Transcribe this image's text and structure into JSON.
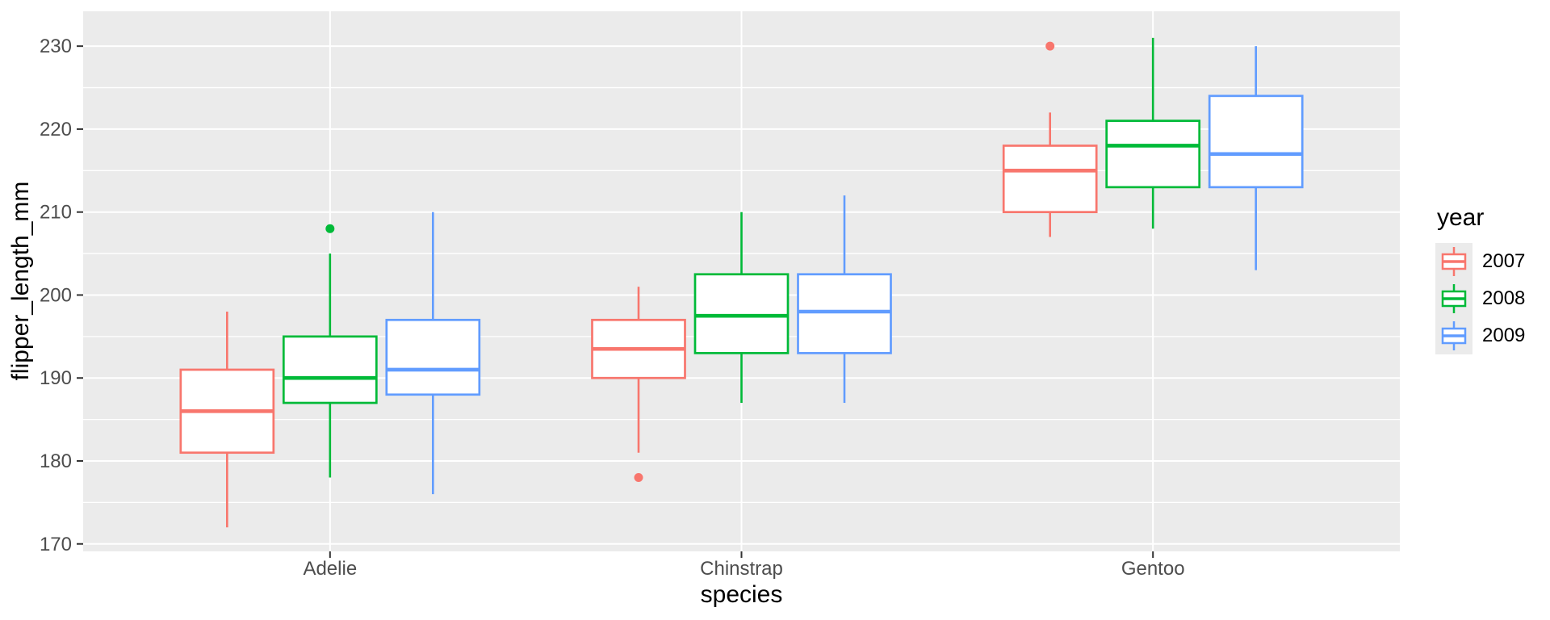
{
  "chart_data": {
    "type": "boxplot",
    "title": "",
    "xlabel": "species",
    "ylabel": "flipper_length_mm",
    "categories": [
      "Adelie",
      "Chinstrap",
      "Gentoo"
    ],
    "y_ticks": [
      170,
      180,
      190,
      200,
      210,
      220,
      230
    ],
    "y_minor_ticks": [
      175,
      185,
      195,
      205,
      215,
      225
    ],
    "ylim": [
      169.1,
      234.2
    ],
    "grid": "white major+minor horizontal lines and white major vertical lines on grey panel",
    "panel_bg": "#EBEBEB",
    "grid_color": "#FFFFFF",
    "tick_label_color": "#4D4D4D",
    "tick_mark_color": "#333333",
    "legend": {
      "title": "year",
      "position": "right"
    },
    "series": [
      {
        "name": "2007",
        "color": "#F8766D",
        "boxes": [
          {
            "category": "Adelie",
            "whisker_low": 172,
            "q1": 181,
            "median": 186,
            "q3": 191,
            "whisker_high": 198,
            "outliers": []
          },
          {
            "category": "Chinstrap",
            "whisker_low": 181,
            "q1": 190,
            "median": 193.5,
            "q3": 197,
            "whisker_high": 201,
            "outliers": [
              178
            ]
          },
          {
            "category": "Gentoo",
            "whisker_low": 207,
            "q1": 210,
            "median": 215,
            "q3": 218,
            "whisker_high": 222,
            "outliers": [
              230
            ]
          }
        ]
      },
      {
        "name": "2008",
        "color": "#00BA38",
        "boxes": [
          {
            "category": "Adelie",
            "whisker_low": 178,
            "q1": 187,
            "median": 190,
            "q3": 195,
            "whisker_high": 205,
            "outliers": [
              208
            ]
          },
          {
            "category": "Chinstrap",
            "whisker_low": 187,
            "q1": 193,
            "median": 197.5,
            "q3": 202.5,
            "whisker_high": 210,
            "outliers": []
          },
          {
            "category": "Gentoo",
            "whisker_low": 208,
            "q1": 213,
            "median": 218,
            "q3": 221,
            "whisker_high": 231,
            "outliers": []
          }
        ]
      },
      {
        "name": "2009",
        "color": "#619CFF",
        "boxes": [
          {
            "category": "Adelie",
            "whisker_low": 176,
            "q1": 188,
            "median": 191,
            "q3": 197,
            "whisker_high": 210,
            "outliers": []
          },
          {
            "category": "Chinstrap",
            "whisker_low": 187,
            "q1": 193,
            "median": 198,
            "q3": 202.5,
            "whisker_high": 212,
            "outliers": []
          },
          {
            "category": "Gentoo",
            "whisker_low": 203,
            "q1": 213,
            "median": 217,
            "q3": 224,
            "whisker_high": 230,
            "outliers": []
          }
        ]
      }
    ]
  }
}
